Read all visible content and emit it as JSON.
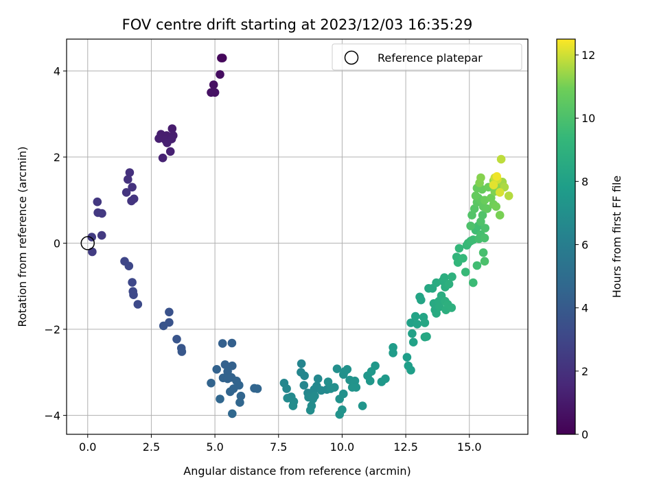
{
  "chart_data": {
    "type": "scatter",
    "title": "FOV centre drift starting at 2023/12/03 16:35:29",
    "xlabel": "Angular distance from reference (arcmin)",
    "ylabel": "Rotation from reference (arcmin)",
    "xlim": [
      -0.83,
      17.3
    ],
    "ylim": [
      -4.44,
      4.74
    ],
    "xticks": [
      "0.0",
      "2.5",
      "5.0",
      "7.5",
      "10.0",
      "12.5",
      "15.0"
    ],
    "xtick_values": [
      0,
      2.5,
      5,
      7.5,
      10,
      12.5,
      15
    ],
    "yticks": [
      "−4",
      "−2",
      "0",
      "2",
      "4"
    ],
    "ytick_values": [
      -4,
      -2,
      0,
      2,
      4
    ],
    "grid": true,
    "legend": {
      "label": "Reference platepar",
      "position": "top-right",
      "marker": "hollow-circle"
    },
    "reference_point": [
      0,
      0
    ],
    "colorbar": {
      "label": "Hours from first FF file",
      "colormap": "viridis",
      "range": [
        0,
        12.5
      ],
      "ticks": [
        "0",
        "2",
        "4",
        "6",
        "8",
        "10",
        "12"
      ],
      "tick_values": [
        0,
        2,
        4,
        6,
        8,
        10,
        12
      ]
    },
    "points": [
      [
        5.3,
        4.3,
        0.3
      ],
      [
        5.25,
        4.3,
        0.3
      ],
      [
        5.2,
        3.92,
        0.5
      ],
      [
        4.95,
        3.68,
        0.6
      ],
      [
        4.85,
        3.5,
        0.7
      ],
      [
        5.0,
        3.5,
        0.7
      ],
      [
        3.32,
        2.66,
        1.1
      ],
      [
        2.88,
        2.53,
        1.15
      ],
      [
        3.1,
        2.5,
        1.15
      ],
      [
        3.36,
        2.5,
        1.15
      ],
      [
        2.8,
        2.43,
        1.2
      ],
      [
        3.05,
        2.4,
        1.2
      ],
      [
        3.3,
        2.42,
        1.2
      ],
      [
        3.12,
        2.33,
        1.25
      ],
      [
        3.25,
        2.13,
        1.3
      ],
      [
        2.95,
        1.98,
        1.35
      ],
      [
        1.65,
        1.64,
        2.0
      ],
      [
        1.58,
        1.48,
        2.05
      ],
      [
        1.75,
        1.3,
        2.1
      ],
      [
        1.52,
        1.18,
        2.15
      ],
      [
        1.82,
        1.03,
        2.2
      ],
      [
        1.72,
        0.98,
        2.2
      ],
      [
        0.38,
        0.96,
        2.3
      ],
      [
        0.4,
        0.71,
        2.35
      ],
      [
        0.56,
        0.69,
        2.35
      ],
      [
        0.55,
        0.18,
        2.4
      ],
      [
        0.16,
        0.14,
        2.45
      ],
      [
        0.18,
        -0.2,
        2.5
      ],
      [
        1.45,
        -0.42,
        3.0
      ],
      [
        1.62,
        -0.53,
        3.05
      ],
      [
        1.75,
        -0.91,
        3.1
      ],
      [
        1.78,
        -1.12,
        3.15
      ],
      [
        1.8,
        -1.2,
        3.15
      ],
      [
        1.97,
        -1.42,
        3.2
      ],
      [
        3.2,
        -1.6,
        3.6
      ],
      [
        3.2,
        -1.84,
        3.65
      ],
      [
        2.98,
        -1.92,
        3.7
      ],
      [
        3.5,
        -2.23,
        3.75
      ],
      [
        3.68,
        -2.44,
        3.8
      ],
      [
        3.7,
        -2.52,
        3.85
      ],
      [
        5.3,
        -2.33,
        4.3
      ],
      [
        5.67,
        -2.32,
        4.3
      ],
      [
        5.4,
        -2.82,
        4.35
      ],
      [
        5.68,
        -2.85,
        4.35
      ],
      [
        5.07,
        -2.93,
        4.4
      ],
      [
        5.5,
        -2.98,
        4.4
      ],
      [
        5.32,
        -3.13,
        4.45
      ],
      [
        5.5,
        -3.15,
        4.45
      ],
      [
        5.65,
        -3.12,
        4.45
      ],
      [
        4.85,
        -3.25,
        4.5
      ],
      [
        5.85,
        -3.2,
        4.5
      ],
      [
        5.95,
        -3.3,
        4.55
      ],
      [
        5.73,
        -3.38,
        4.55
      ],
      [
        5.6,
        -3.45,
        4.55
      ],
      [
        6.02,
        -3.55,
        4.6
      ],
      [
        6.55,
        -3.37,
        4.6
      ],
      [
        6.67,
        -3.38,
        4.6
      ],
      [
        5.2,
        -3.62,
        4.65
      ],
      [
        5.98,
        -3.7,
        4.65
      ],
      [
        5.68,
        -3.96,
        4.7
      ],
      [
        8.4,
        -2.8,
        6.4
      ],
      [
        8.38,
        -3.0,
        6.45
      ],
      [
        8.52,
        -3.08,
        6.45
      ],
      [
        7.72,
        -3.25,
        6.5
      ],
      [
        8.5,
        -3.3,
        6.5
      ],
      [
        7.82,
        -3.38,
        6.55
      ],
      [
        8.65,
        -3.48,
        6.55
      ],
      [
        8.9,
        -3.4,
        6.6
      ],
      [
        9.0,
        -3.32,
        6.6
      ],
      [
        9.05,
        -3.15,
        6.6
      ],
      [
        9.18,
        -3.42,
        6.65
      ],
      [
        9.4,
        -3.4,
        6.65
      ],
      [
        8.68,
        -3.58,
        6.7
      ],
      [
        8.0,
        -3.57,
        6.7
      ],
      [
        7.85,
        -3.6,
        6.7
      ],
      [
        8.1,
        -3.68,
        6.75
      ],
      [
        8.92,
        -3.55,
        6.75
      ],
      [
        8.85,
        -3.62,
        6.75
      ],
      [
        8.07,
        -3.78,
        6.8
      ],
      [
        8.8,
        -3.78,
        6.8
      ],
      [
        8.75,
        -3.88,
        6.85
      ],
      [
        9.55,
        -3.38,
        6.9
      ],
      [
        9.7,
        -3.35,
        6.95
      ],
      [
        9.8,
        -2.92,
        6.95
      ],
      [
        9.45,
        -3.22,
        7.0
      ],
      [
        10.05,
        -3.05,
        7.05
      ],
      [
        10.1,
        -2.98,
        7.05
      ],
      [
        10.2,
        -2.93,
        7.1
      ],
      [
        10.05,
        -3.5,
        7.1
      ],
      [
        9.9,
        -3.62,
        7.1
      ],
      [
        10.3,
        -3.18,
        7.15
      ],
      [
        10.5,
        -3.2,
        7.2
      ],
      [
        10.55,
        -3.35,
        7.25
      ],
      [
        10.4,
        -3.35,
        7.25
      ],
      [
        9.9,
        -3.98,
        7.2
      ],
      [
        10.0,
        -3.87,
        7.2
      ],
      [
        10.8,
        -3.78,
        7.3
      ],
      [
        11.0,
        -3.08,
        7.35
      ],
      [
        11.1,
        -3.2,
        7.4
      ],
      [
        11.3,
        -2.85,
        7.45
      ],
      [
        11.15,
        -2.98,
        7.45
      ],
      [
        11.55,
        -3.22,
        7.5
      ],
      [
        11.7,
        -3.15,
        7.55
      ],
      [
        12.0,
        -2.42,
        7.7
      ],
      [
        12.0,
        -2.55,
        7.7
      ],
      [
        12.55,
        -2.65,
        7.8
      ],
      [
        12.6,
        -2.85,
        7.85
      ],
      [
        12.7,
        -2.95,
        7.85
      ],
      [
        12.7,
        -1.85,
        8.0
      ],
      [
        12.75,
        -2.1,
        8.0
      ],
      [
        12.8,
        -2.3,
        8.05
      ],
      [
        12.88,
        -1.7,
        8.1
      ],
      [
        12.95,
        -1.88,
        8.1
      ],
      [
        13.05,
        -1.25,
        8.2
      ],
      [
        13.1,
        -1.32,
        8.2
      ],
      [
        13.2,
        -1.72,
        8.25
      ],
      [
        13.25,
        -1.85,
        8.3
      ],
      [
        13.25,
        -2.18,
        8.3
      ],
      [
        13.32,
        -2.17,
        8.35
      ],
      [
        13.4,
        -1.05,
        8.4
      ],
      [
        13.55,
        -1.05,
        8.45
      ],
      [
        13.6,
        -1.4,
        8.5
      ],
      [
        13.65,
        -1.55,
        8.5
      ],
      [
        13.7,
        -1.63,
        8.55
      ],
      [
        13.7,
        -0.92,
        8.6
      ],
      [
        13.8,
        -1.35,
        8.6
      ],
      [
        13.82,
        -1.48,
        8.65
      ],
      [
        13.9,
        -1.22,
        8.7
      ],
      [
        13.95,
        -0.88,
        8.7
      ],
      [
        14.02,
        -0.8,
        8.75
      ],
      [
        14.05,
        -1.02,
        8.75
      ],
      [
        14.05,
        -1.35,
        8.8
      ],
      [
        14.08,
        -1.55,
        8.8
      ],
      [
        14.15,
        -1.42,
        8.85
      ],
      [
        14.2,
        -0.95,
        8.9
      ],
      [
        14.3,
        -1.5,
        8.9
      ],
      [
        14.32,
        -0.78,
        8.95
      ],
      [
        14.5,
        -0.32,
        9.2
      ],
      [
        14.55,
        -0.45,
        9.25
      ],
      [
        14.6,
        -0.12,
        9.3
      ],
      [
        14.75,
        -0.35,
        9.35
      ],
      [
        14.9,
        -0.05,
        9.4
      ],
      [
        14.95,
        0.0,
        9.45
      ],
      [
        14.85,
        -0.67,
        9.45
      ],
      [
        15.05,
        0.05,
        9.5
      ],
      [
        15.15,
        -0.92,
        9.55
      ],
      [
        15.15,
        0.08,
        9.6
      ],
      [
        15.25,
        0.3,
        9.65
      ],
      [
        15.3,
        -0.52,
        9.7
      ],
      [
        15.35,
        0.4,
        9.75
      ],
      [
        15.38,
        0.1,
        9.8
      ],
      [
        15.45,
        0.2,
        9.85
      ],
      [
        15.55,
        -0.22,
        9.9
      ],
      [
        15.6,
        0.12,
        9.95
      ],
      [
        15.62,
        0.35,
        10.0
      ],
      [
        15.6,
        -0.42,
        10.0
      ],
      [
        15.05,
        0.4,
        10.05
      ],
      [
        15.45,
        0.5,
        10.1
      ],
      [
        15.52,
        0.65,
        10.15
      ],
      [
        15.1,
        0.65,
        10.2
      ],
      [
        15.2,
        0.8,
        10.25
      ],
      [
        15.3,
        0.95,
        10.4
      ],
      [
        15.35,
        1.05,
        10.45
      ],
      [
        15.45,
        1.0,
        10.5
      ],
      [
        15.55,
        0.85,
        10.55
      ],
      [
        15.7,
        0.8,
        10.6
      ],
      [
        15.25,
        1.1,
        10.65
      ],
      [
        15.3,
        1.28,
        10.7
      ],
      [
        15.5,
        1.25,
        10.75
      ],
      [
        15.6,
        1.0,
        10.8
      ],
      [
        15.75,
        1.3,
        10.85
      ],
      [
        15.85,
        1.05,
        10.9
      ],
      [
        15.95,
        0.9,
        10.95
      ],
      [
        16.05,
        0.85,
        11.0
      ],
      [
        16.2,
        0.65,
        11.05
      ],
      [
        16.0,
        1.2,
        11.1
      ],
      [
        16.1,
        1.38,
        11.15
      ],
      [
        15.4,
        1.4,
        11.15
      ],
      [
        15.45,
        1.52,
        11.2
      ],
      [
        16.2,
        1.3,
        11.25
      ],
      [
        15.95,
        1.45,
        11.35
      ],
      [
        16.05,
        1.5,
        11.4
      ],
      [
        16.3,
        1.42,
        11.5
      ],
      [
        16.38,
        1.3,
        11.6
      ],
      [
        16.55,
        1.1,
        11.7
      ],
      [
        16.25,
        1.95,
        11.8
      ],
      [
        16.0,
        1.52,
        11.9
      ],
      [
        16.1,
        1.48,
        12.0
      ],
      [
        16.2,
        1.18,
        12.1
      ],
      [
        15.95,
        1.35,
        12.2
      ],
      [
        16.08,
        1.55,
        12.35
      ]
    ]
  }
}
